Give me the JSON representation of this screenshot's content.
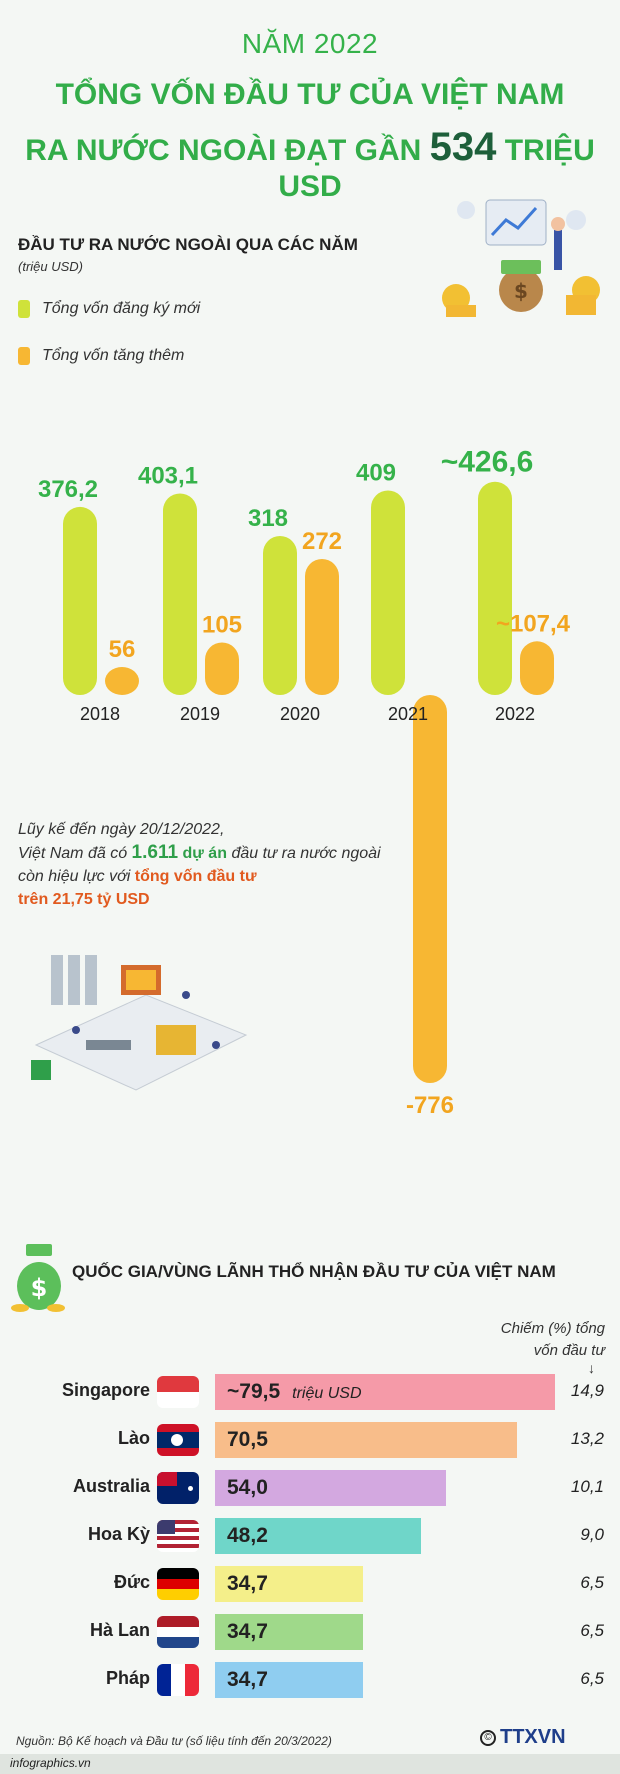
{
  "header": {
    "year_line": "NĂM 2022",
    "title_line1": "TỔNG VỐN ĐẦU TƯ CỦA VIỆT NAM",
    "title_line2_pre": "RA NƯỚC NGOÀI ĐẠT GẦN",
    "title_line2_big": "534",
    "title_line2_post": "TRIỆU USD"
  },
  "section1": {
    "heading": "ĐẦU TƯ RA NƯỚC NGOÀI QUA CÁC NĂM",
    "unit": "(triệu USD)",
    "legend": [
      {
        "label": "Tổng vốn đăng ký mới",
        "color": "#cfe23a"
      },
      {
        "label": "Tổng vốn tăng thêm",
        "color": "#f7b733"
      }
    ]
  },
  "chart_data": [
    {
      "type": "bar",
      "title": "ĐẦU TƯ RA NƯỚC NGOÀI QUA CÁC NĂM",
      "ylabel": "(triệu USD)",
      "categories": [
        "2018",
        "2019",
        "2020",
        "2021",
        "2022"
      ],
      "series": [
        {
          "name": "Tổng vốn đăng ký mới",
          "values": [
            376.2,
            403.1,
            318,
            409,
            426.6
          ],
          "labels": [
            "376,2",
            "403,1",
            "318",
            "409",
            "~426,6"
          ],
          "color": "#cfe23a",
          "label_color": "#35b24a"
        },
        {
          "name": "Tổng vốn tăng thêm",
          "values": [
            56,
            105,
            272,
            -776,
            107.4
          ],
          "labels": [
            "56",
            "105",
            "272",
            "-776",
            "~107,4"
          ],
          "color": "#f7b733",
          "label_color": "#f2a51f"
        }
      ]
    },
    {
      "type": "bar",
      "title": "QUỐC GIA/VÙNG LÃNH THỔ NHẬN ĐẦU TƯ CỦA VIỆT NAM",
      "categories": [
        "Singapore",
        "Lào",
        "Australia",
        "Hoa Kỳ",
        "Đức",
        "Hà Lan",
        "Pháp"
      ],
      "series": [
        {
          "name": "triệu USD",
          "values": [
            79.5,
            70.5,
            54.0,
            48.2,
            34.7,
            34.7,
            34.7
          ],
          "labels": [
            "~79,5",
            "70,5",
            "54,0",
            "48,2",
            "34,7",
            "34,7",
            "34,7"
          ]
        },
        {
          "name": "Chiếm (%) tổng vốn đầu tư",
          "values": [
            14.9,
            13.2,
            10.1,
            9.0,
            6.5,
            6.5,
            6.5
          ],
          "labels": [
            "14,9",
            "13,2",
            "10,1",
            "9,0",
            "6,5",
            "6,5",
            "6,5"
          ]
        }
      ]
    }
  ],
  "note": {
    "line1": "Lũy kế đến ngày 20/12/2022,",
    "line2_pre": "Việt Nam đã có",
    "line2_num": "1.611",
    "line2_hl": "dự án",
    "line2_post": "đầu tư ra nước ngoài",
    "line3_pre": "còn hiệu lực với",
    "line3_hl": "tổng vốn đầu tư",
    "line4": "trên 21,75 tỷ USD"
  },
  "section2": {
    "heading": "QUỐC GIA/VÙNG LÃNH THỔ NHẬN ĐẦU TƯ CỦA VIỆT NAM",
    "share_head_line1": "Chiếm (%) tổng",
    "share_head_line2": "vốn đầu tư",
    "unit_label": "triệu USD",
    "rows": [
      {
        "country": "Singapore",
        "value": "~79,5",
        "pct": "14,9",
        "color": "#f59aa8"
      },
      {
        "country": "Lào",
        "value": "70,5",
        "pct": "13,2",
        "color": "#f8bd8a"
      },
      {
        "country": "Australia",
        "value": "54,0",
        "pct": "10,1",
        "color": "#d3a8e0"
      },
      {
        "country": "Hoa Kỳ",
        "value": "48,2",
        "pct": "9,0",
        "color": "#6fd6c9"
      },
      {
        "country": "Đức",
        "value": "34,7",
        "pct": "6,5",
        "color": "#f4ef8a"
      },
      {
        "country": "Hà Lan",
        "value": "34,7",
        "pct": "6,5",
        "color": "#9fd98a"
      },
      {
        "country": "Pháp",
        "value": "34,7",
        "pct": "6,5",
        "color": "#8fcdf0"
      }
    ]
  },
  "footer": {
    "source": "Nguồn: Bộ Kế hoạch và Đầu tư (số liệu tính đến 20/3/2022)",
    "site": "infographics.vn",
    "logo": "TTXVN",
    "copyright_symbol": "©"
  }
}
